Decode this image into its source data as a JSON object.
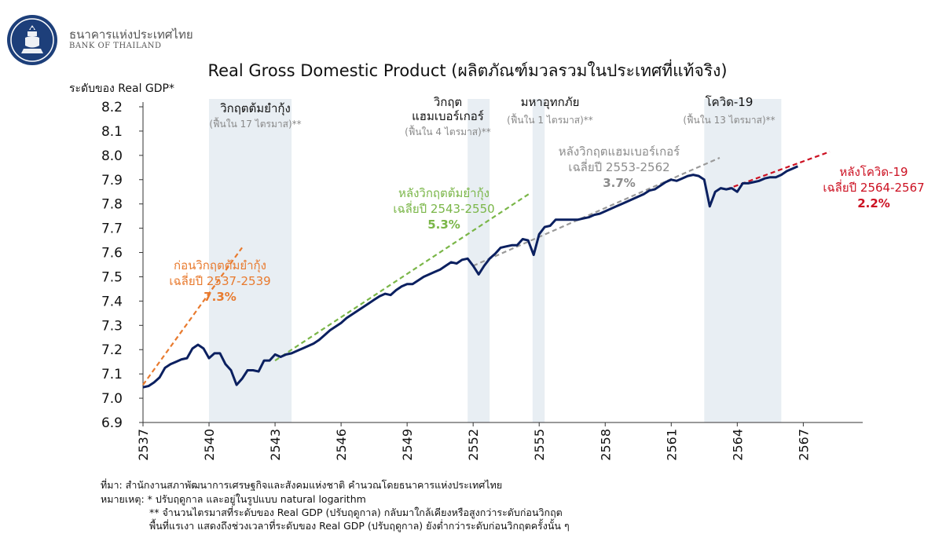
{
  "header": {
    "org_name_th": "ธนาคารแห่งประเทศไทย",
    "org_name_en": "BANK OF THAILAND",
    "logo_icon": "bank-of-thailand-emblem-icon"
  },
  "chart_data": {
    "type": "line",
    "title": "Real Gross Domestic Product (ผลิตภัณฑ์มวลรวมในประเทศที่แท้จริง)",
    "ylabel": "ระดับของ Real GDP*",
    "xlabel": "",
    "ylim": [
      6.9,
      8.2
    ],
    "xlim": [
      2537,
      2569.7
    ],
    "yticks": [
      "8.2",
      "8.1",
      "8.0",
      "7.9",
      "7.8",
      "7.7",
      "7.6",
      "7.5",
      "7.4",
      "7.3",
      "7.2",
      "7.1",
      "7.0",
      "6.9"
    ],
    "xticks": [
      "2537",
      "2540",
      "2543",
      "2546",
      "2549",
      "2552",
      "2555",
      "2558",
      "2561",
      "2564",
      "2567"
    ],
    "grid": false,
    "line_color": "#0b2060",
    "series": [
      {
        "values": [
          [
            2537.0,
            7.045
          ],
          [
            2537.25,
            7.05
          ],
          [
            2537.5,
            7.065
          ],
          [
            2537.75,
            7.085
          ],
          [
            2538.0,
            7.125
          ],
          [
            2538.25,
            7.14
          ],
          [
            2538.5,
            7.15
          ],
          [
            2538.75,
            7.16
          ],
          [
            2539.0,
            7.165
          ],
          [
            2539.25,
            7.205
          ],
          [
            2539.5,
            7.22
          ],
          [
            2539.75,
            7.205
          ],
          [
            2540.0,
            7.165
          ],
          [
            2540.25,
            7.185
          ],
          [
            2540.5,
            7.185
          ],
          [
            2540.75,
            7.14
          ],
          [
            2541.0,
            7.115
          ],
          [
            2541.25,
            7.055
          ],
          [
            2541.5,
            7.08
          ],
          [
            2541.75,
            7.115
          ],
          [
            2542.0,
            7.115
          ],
          [
            2542.25,
            7.11
          ],
          [
            2542.5,
            7.155
          ],
          [
            2542.75,
            7.155
          ],
          [
            2543.0,
            7.18
          ],
          [
            2543.25,
            7.17
          ],
          [
            2543.5,
            7.18
          ],
          [
            2543.75,
            7.185
          ],
          [
            2544.0,
            7.195
          ],
          [
            2544.25,
            7.205
          ],
          [
            2544.5,
            7.215
          ],
          [
            2544.75,
            7.225
          ],
          [
            2545.0,
            7.24
          ],
          [
            2545.25,
            7.26
          ],
          [
            2545.5,
            7.28
          ],
          [
            2545.75,
            7.295
          ],
          [
            2546.0,
            7.31
          ],
          [
            2546.25,
            7.33
          ],
          [
            2546.5,
            7.345
          ],
          [
            2546.75,
            7.36
          ],
          [
            2547.0,
            7.375
          ],
          [
            2547.25,
            7.39
          ],
          [
            2547.5,
            7.405
          ],
          [
            2547.75,
            7.42
          ],
          [
            2548.0,
            7.43
          ],
          [
            2548.25,
            7.425
          ],
          [
            2548.5,
            7.445
          ],
          [
            2548.75,
            7.46
          ],
          [
            2549.0,
            7.47
          ],
          [
            2549.25,
            7.47
          ],
          [
            2549.5,
            7.485
          ],
          [
            2549.75,
            7.5
          ],
          [
            2550.0,
            7.51
          ],
          [
            2550.25,
            7.52
          ],
          [
            2550.5,
            7.53
          ],
          [
            2550.75,
            7.545
          ],
          [
            2551.0,
            7.56
          ],
          [
            2551.25,
            7.555
          ],
          [
            2551.5,
            7.57
          ],
          [
            2551.75,
            7.575
          ],
          [
            2552.0,
            7.545
          ],
          [
            2552.25,
            7.51
          ],
          [
            2552.5,
            7.545
          ],
          [
            2552.75,
            7.575
          ],
          [
            2553.0,
            7.595
          ],
          [
            2553.25,
            7.62
          ],
          [
            2553.5,
            7.625
          ],
          [
            2553.75,
            7.63
          ],
          [
            2554.0,
            7.63
          ],
          [
            2554.25,
            7.655
          ],
          [
            2554.5,
            7.65
          ],
          [
            2554.75,
            7.59
          ],
          [
            2555.0,
            7.675
          ],
          [
            2555.25,
            7.705
          ],
          [
            2555.5,
            7.71
          ],
          [
            2555.75,
            7.735
          ],
          [
            2556.0,
            7.735
          ],
          [
            2556.25,
            7.735
          ],
          [
            2556.5,
            7.735
          ],
          [
            2556.75,
            7.735
          ],
          [
            2557.0,
            7.74
          ],
          [
            2557.25,
            7.745
          ],
          [
            2557.5,
            7.755
          ],
          [
            2557.75,
            7.76
          ],
          [
            2558.0,
            7.77
          ],
          [
            2558.25,
            7.78
          ],
          [
            2558.5,
            7.79
          ],
          [
            2558.75,
            7.8
          ],
          [
            2559.0,
            7.81
          ],
          [
            2559.25,
            7.82
          ],
          [
            2559.5,
            7.83
          ],
          [
            2559.75,
            7.84
          ],
          [
            2560.0,
            7.855
          ],
          [
            2560.25,
            7.86
          ],
          [
            2560.5,
            7.875
          ],
          [
            2560.75,
            7.89
          ],
          [
            2561.0,
            7.9
          ],
          [
            2561.25,
            7.895
          ],
          [
            2561.5,
            7.905
          ],
          [
            2561.75,
            7.915
          ],
          [
            2562.0,
            7.92
          ],
          [
            2562.25,
            7.915
          ],
          [
            2562.5,
            7.9
          ],
          [
            2562.75,
            7.79
          ],
          [
            2563.0,
            7.85
          ],
          [
            2563.25,
            7.865
          ],
          [
            2563.5,
            7.86
          ],
          [
            2563.75,
            7.865
          ],
          [
            2564.0,
            7.85
          ],
          [
            2564.25,
            7.885
          ],
          [
            2564.5,
            7.885
          ],
          [
            2564.75,
            7.89
          ],
          [
            2565.0,
            7.895
          ],
          [
            2565.25,
            7.905
          ],
          [
            2565.5,
            7.91
          ],
          [
            2565.75,
            7.91
          ],
          [
            2566.0,
            7.92
          ],
          [
            2566.25,
            7.935
          ],
          [
            2566.5,
            7.945
          ],
          [
            2566.75,
            7.955
          ]
        ]
      }
    ],
    "trend_lines": [
      {
        "color": "#e87a2e",
        "start": [
          2537.0,
          7.055
        ],
        "end": [
          2539.7,
          7.22
        ],
        "extend_to": [
          2541.5,
          7.62
        ]
      },
      {
        "color": "#7ab648",
        "start": [
          2543.0,
          7.155
        ],
        "end": [
          2550.5,
          7.53
        ],
        "extend_to": [
          2554.6,
          7.845
        ]
      },
      {
        "color": "#9a9a9a",
        "start": [
          2552.0,
          7.545
        ],
        "end": [
          2562.0,
          7.915
        ],
        "extend_to": [
          2563.2,
          7.99
        ]
      },
      {
        "color": "#cc1122",
        "start": [
          2563.5,
          7.86
        ],
        "end": [
          2566.75,
          7.95
        ],
        "extend_to": [
          2568.2,
          8.015
        ]
      }
    ],
    "shaded_periods": [
      {
        "start": 2540.0,
        "end": 2543.75,
        "label": "วิกฤตต้มยำกุ้ง",
        "sublabel": "(ฟื้นใน 17 ไตรมาส)**"
      },
      {
        "start": 2551.75,
        "end": 2552.75,
        "label": "วิกฤต\nแฮมเบอร์เกอร์",
        "sublabel": "(ฟื้นใน 4 ไตรมาส)**"
      },
      {
        "start": 2554.7,
        "end": 2555.25,
        "label": "มหาอุทกภัย",
        "sublabel": "(ฟื้นใน 1 ไตรมาส)**"
      },
      {
        "start": 2562.5,
        "end": 2566.0,
        "label": "โควิด-19",
        "sublabel": "(ฟื้นใน 13 ไตรมาส)**"
      }
    ],
    "shade_color": "#e8eef3",
    "annotations": [
      {
        "lines": [
          "ก่อนวิกฤตต้มยำกุ้ง",
          "เฉลี่ยปี 2537-2539"
        ],
        "value": "7.3%",
        "color": "#e87a2e"
      },
      {
        "lines": [
          "หลังวิกฤตต้มยำกุ้ง",
          "เฉลี่ยปี 2543-2550"
        ],
        "value": "5.3%",
        "color": "#7ab648"
      },
      {
        "lines": [
          "หลังวิกฤตแฮมเบอร์เกอร์",
          "เฉลี่ยปี 2553-2562"
        ],
        "value": "3.7%",
        "color": "#8c8c8c"
      },
      {
        "lines": [
          "หลังโควิด-19",
          "เฉลี่ยปี 2564-2567"
        ],
        "value": "2.2%",
        "color": "#cc1122"
      }
    ]
  },
  "footnotes": {
    "source": "ที่มา: สำนักงานสภาพัฒนาการเศรษฐกิจและสังคมแห่งชาติ คำนวณโดยธนาคารแห่งประเทศไทย",
    "note1": "หมายเหตุ: * ปรับฤดูกาล และอยู่ในรูปแบบ natural logarithm",
    "note2": "** จำนวนไตรมาสที่ระดับของ Real GDP (ปรับฤดูกาล) กลับมาใกล้เคียงหรือสูงกว่าระดับก่อนวิกฤต",
    "note3": "พื้นที่แรเงา แสดงถึงช่วงเวลาที่ระดับของ Real GDP (ปรับฤดูกาล) ยังต่ำกว่าระดับก่อนวิกฤตครั้งนั้น ๆ"
  }
}
